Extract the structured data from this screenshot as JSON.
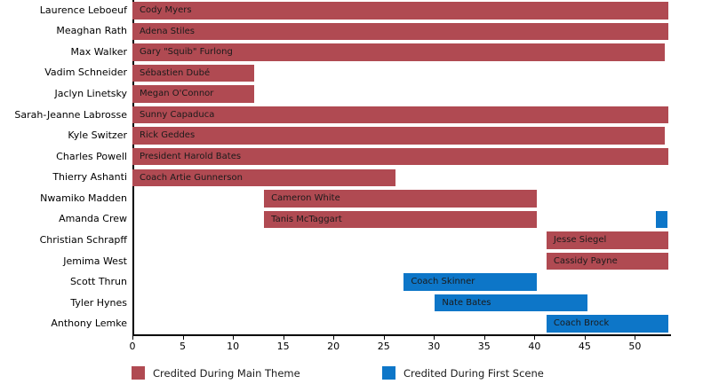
{
  "chart_data": {
    "type": "bar",
    "orientation": "horizontal",
    "title": "",
    "xlabel": "",
    "ylabel": "",
    "xlim": [
      0,
      53.5
    ],
    "x_ticks": [
      0,
      5,
      10,
      15,
      20,
      25,
      30,
      35,
      40,
      45,
      50
    ],
    "grid": false,
    "legend_position": "bottom",
    "legend": [
      {
        "key": "main_theme",
        "label": "Credited During Main Theme",
        "color": "#b04a52"
      },
      {
        "key": "first_scene",
        "label": "Credited During First Scene",
        "color": "#0d76c8"
      }
    ],
    "rows": [
      {
        "actor": "Laurence Leboeuf",
        "segments": [
          {
            "label": "Cody Myers",
            "start": 0,
            "end": 53.3,
            "series": "main_theme"
          }
        ]
      },
      {
        "actor": "Meaghan Rath",
        "segments": [
          {
            "label": "Adena Stiles",
            "start": 0,
            "end": 53.3,
            "series": "main_theme"
          }
        ]
      },
      {
        "actor": "Max Walker",
        "segments": [
          {
            "label": "Gary \"Squib\" Furlong",
            "start": 0,
            "end": 53.0,
            "series": "main_theme"
          }
        ]
      },
      {
        "actor": "Vadim Schneider",
        "segments": [
          {
            "label": "Sébastien Dubé",
            "start": 0,
            "end": 12.1,
            "series": "main_theme"
          }
        ]
      },
      {
        "actor": "Jaclyn Linetsky",
        "segments": [
          {
            "label": "Megan O'Connor",
            "start": 0,
            "end": 12.1,
            "series": "main_theme"
          }
        ]
      },
      {
        "actor": "Sarah-Jeanne Labrosse",
        "segments": [
          {
            "label": "Sunny Capaduca",
            "start": 0,
            "end": 53.3,
            "series": "main_theme"
          }
        ]
      },
      {
        "actor": "Kyle Switzer",
        "segments": [
          {
            "label": "Rick Geddes",
            "start": 0,
            "end": 53.0,
            "series": "main_theme"
          }
        ]
      },
      {
        "actor": "Charles Powell",
        "segments": [
          {
            "label": "President Harold Bates",
            "start": 0,
            "end": 53.3,
            "series": "main_theme"
          }
        ]
      },
      {
        "actor": "Thierry Ashanti",
        "segments": [
          {
            "label": "Coach Artie Gunnerson",
            "start": 0,
            "end": 26.2,
            "series": "main_theme"
          }
        ]
      },
      {
        "actor": "Nwamiko Madden",
        "segments": [
          {
            "label": "Cameron White",
            "start": 13.1,
            "end": 40.2,
            "series": "main_theme"
          }
        ]
      },
      {
        "actor": "Amanda Crew",
        "segments": [
          {
            "label": "Tanis McTaggart",
            "start": 13.1,
            "end": 40.2,
            "series": "main_theme"
          },
          {
            "label": "",
            "start": 52.1,
            "end": 53.2,
            "series": "first_scene"
          }
        ]
      },
      {
        "actor": "Christian Schrapff",
        "segments": [
          {
            "label": "Jesse Siegel",
            "start": 41.2,
            "end": 53.3,
            "series": "main_theme"
          }
        ]
      },
      {
        "actor": "Jemima West",
        "segments": [
          {
            "label": "Cassidy Payne",
            "start": 41.2,
            "end": 53.3,
            "series": "main_theme"
          }
        ]
      },
      {
        "actor": "Scott Thrun",
        "segments": [
          {
            "label": "Coach Skinner",
            "start": 27.0,
            "end": 40.2,
            "series": "first_scene"
          }
        ]
      },
      {
        "actor": "Tyler Hynes",
        "segments": [
          {
            "label": "Nate Bates",
            "start": 30.1,
            "end": 45.3,
            "series": "first_scene"
          }
        ]
      },
      {
        "actor": "Anthony Lemke",
        "segments": [
          {
            "label": "Coach Brock",
            "start": 41.2,
            "end": 53.3,
            "series": "first_scene"
          }
        ]
      }
    ]
  }
}
